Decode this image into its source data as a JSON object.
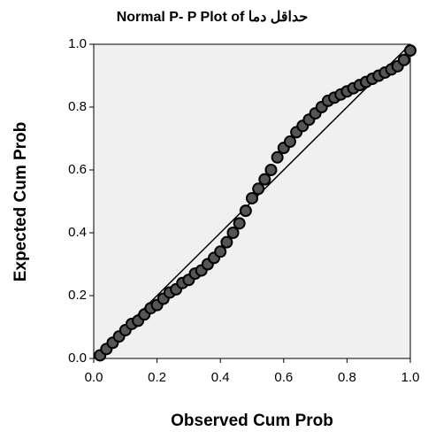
{
  "chart_data": {
    "type": "scatter",
    "title": "Normal P- P Plot of حداقل دما",
    "x_label": "Observed Cum Prob",
    "y_label": "Expected Cum Prob",
    "xlim": [
      0,
      1
    ],
    "ylim": [
      0,
      1
    ],
    "xticks": [
      {
        "value": 0,
        "label": "0.0"
      },
      0.2,
      0.4,
      0.6,
      0.8,
      {
        "value": 1,
        "label": "1.0"
      }
    ],
    "yticks": [
      {
        "value": 0,
        "label": "0.0"
      },
      0.2,
      0.4,
      0.6,
      0.8,
      {
        "value": 1,
        "label": "1.0"
      }
    ],
    "reference_line": true,
    "color": "#555555",
    "x": [
      0.02,
      0.04,
      0.06,
      0.08,
      0.1,
      0.12,
      0.14,
      0.16,
      0.18,
      0.2,
      0.22,
      0.24,
      0.26,
      0.28,
      0.3,
      0.32,
      0.34,
      0.36,
      0.38,
      0.4,
      0.42,
      0.44,
      0.46,
      0.48,
      0.5,
      0.52,
      0.54,
      0.56,
      0.58,
      0.6,
      0.62,
      0.64,
      0.66,
      0.68,
      0.7,
      0.72,
      0.74,
      0.76,
      0.78,
      0.8,
      0.82,
      0.84,
      0.86,
      0.88,
      0.9,
      0.92,
      0.94,
      0.96,
      0.98,
      1.0
    ],
    "values": [
      0.01,
      0.03,
      0.05,
      0.07,
      0.09,
      0.11,
      0.12,
      0.14,
      0.16,
      0.17,
      0.19,
      0.21,
      0.22,
      0.24,
      0.25,
      0.27,
      0.28,
      0.3,
      0.32,
      0.34,
      0.37,
      0.4,
      0.43,
      0.47,
      0.51,
      0.54,
      0.57,
      0.6,
      0.64,
      0.67,
      0.69,
      0.72,
      0.74,
      0.76,
      0.78,
      0.8,
      0.82,
      0.83,
      0.84,
      0.85,
      0.86,
      0.87,
      0.88,
      0.89,
      0.9,
      0.91,
      0.92,
      0.93,
      0.95,
      0.98
    ]
  }
}
